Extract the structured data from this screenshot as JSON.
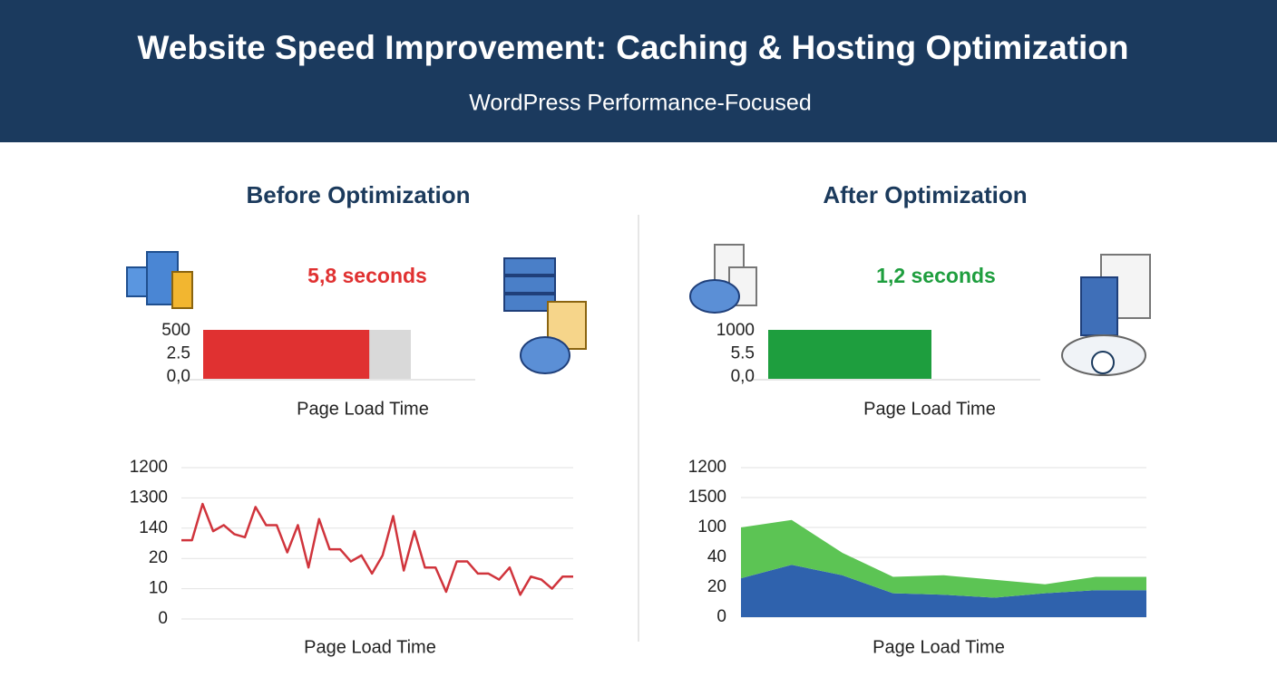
{
  "header": {
    "title": "Website Speed Improvement: Caching & Hosting Optimization",
    "subtitle": "WordPress Performance-Focused"
  },
  "chart_data": [
    {
      "type": "bar",
      "orientation": "horizontal",
      "title": "Before Optimization",
      "values": [
        5.8
      ],
      "value_labels": [
        "5,8 seconds"
      ],
      "color": "#e03131",
      "xlim": [
        0,
        9.5
      ],
      "y_tick_labels": [
        "500",
        "2.5",
        "0,0"
      ],
      "xlabel": "Page Load Time"
    },
    {
      "type": "line",
      "values": [
        2.6,
        2.6,
        3.8,
        2.9,
        3.1,
        2.8,
        2.7,
        3.7,
        3.1,
        3.1,
        2.2,
        3.1,
        1.7,
        3.3,
        2.3,
        2.3,
        1.9,
        2.1,
        1.5,
        2.1,
        3.4,
        1.6,
        2.9,
        1.7,
        1.7,
        0.9,
        1.9,
        1.9,
        1.5,
        1.5,
        1.3,
        1.7,
        0.8,
        1.4,
        1.3,
        1.0,
        1.4,
        1.4
      ],
      "color": "#d0343c",
      "ylim": [
        0,
        5
      ],
      "yticks": [
        {
          "value": 0,
          "label": "0"
        },
        {
          "value": 1,
          "label": "10"
        },
        {
          "value": 2,
          "label": "20"
        },
        {
          "value": 3,
          "label": "140"
        },
        {
          "value": 4,
          "label": "1300"
        },
        {
          "value": 5,
          "label": "1200"
        }
      ],
      "grid": true,
      "xlabel": "Page Load Time"
    },
    {
      "type": "bar",
      "orientation": "horizontal",
      "title": "After Optimization",
      "values": [
        1.2
      ],
      "value_labels": [
        "1,2 seconds"
      ],
      "color": "#1e9e3e",
      "xlim": [
        0,
        2
      ],
      "y_tick_labels": [
        "1000",
        "5.5",
        "0,0"
      ],
      "xlabel": "Page Load Time"
    },
    {
      "type": "area",
      "stacked": true,
      "series": [
        {
          "color": "#2f62ad",
          "values": [
            1.3,
            1.75,
            1.4,
            0.8,
            0.75,
            0.65,
            0.8,
            0.9,
            0.9
          ]
        },
        {
          "color": "#5cc454",
          "values": [
            1.7,
            1.5,
            0.75,
            0.55,
            0.65,
            0.6,
            0.3,
            0.45,
            0.45
          ]
        }
      ],
      "ylim": [
        0,
        5
      ],
      "yticks": [
        {
          "value": 0,
          "label": "0"
        },
        {
          "value": 1,
          "label": "20"
        },
        {
          "value": 2,
          "label": "40"
        },
        {
          "value": 3,
          "label": "100"
        },
        {
          "value": 4,
          "label": "1500"
        },
        {
          "value": 5,
          "label": "1200"
        }
      ],
      "grid": true,
      "xlabel": "Page Load Time"
    }
  ]
}
